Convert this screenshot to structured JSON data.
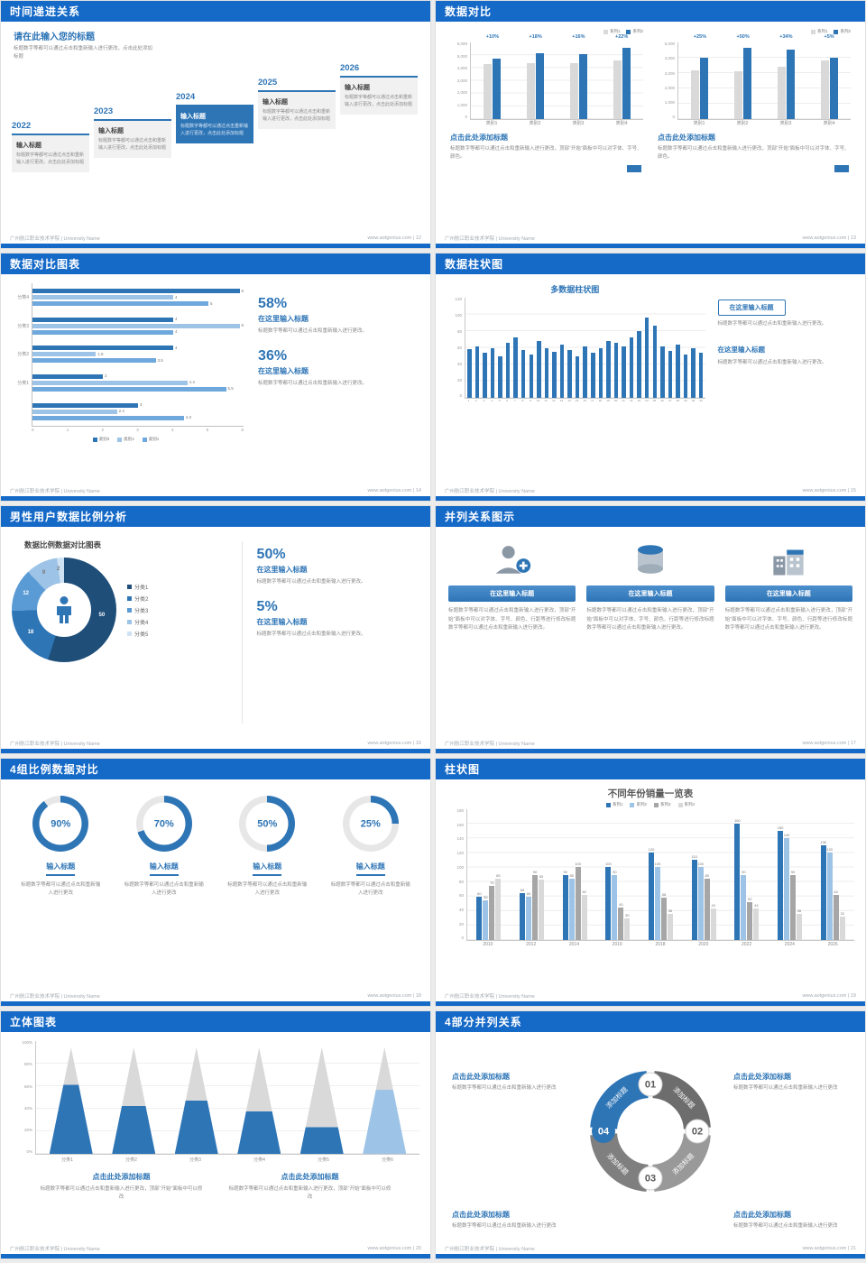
{
  "page": {
    "footer_left": "广州航江职业技术学院 | University Name",
    "footer_site": "www.aotgenius.com"
  },
  "slides": {
    "s12": {
      "page_no": "12",
      "title": "时间递进关系",
      "heading": "请在此输入您的标题",
      "subheading": "标题数字等都可以通过点击和重新输入进行更改，点击此处添加标题",
      "items": [
        {
          "year": "2022",
          "label": "输入标题",
          "text": "标题数字等都可以通过点击和重新输入进行更改，点击此处添加标题"
        },
        {
          "year": "2023",
          "label": "输入标题",
          "text": "标题数字等都可以通过点击和重新输入进行更改，点击此处添加标题"
        },
        {
          "year": "2024",
          "label": "输入标题",
          "text": "标题数字等都可以通过点击重新输入进行更改，点击此处添加标题"
        },
        {
          "year": "2025",
          "label": "输入标题",
          "text": "标题数字等都可以通过点击和重新输入进行更改，点击此处添加标题"
        },
        {
          "year": "2026",
          "label": "输入标题",
          "text": "标题数字等都可以通过点击和重新输入进行更改，点击此处添加标题"
        }
      ]
    },
    "s13": {
      "page_no": "13",
      "title": "数据对比",
      "cap_title": "点击此处添加标题",
      "cap_text": "标题数字等都可以通过点击和重新输入进行更改，顶部“开始”面板中可以对字体、字号、颜色。",
      "chart1": {
        "type": "bar",
        "legend": [
          {
            "label": "系列1",
            "color": "#d9d9d9"
          },
          {
            "label": "系列2",
            "color": "#2e75b6"
          }
        ],
        "colors": [
          "#d9d9d9",
          "#2e75b6"
        ],
        "ymax": 6000,
        "yticks": [
          "6,000",
          "5,000",
          "4,000",
          "3,000",
          "2,000",
          "1,000",
          "0"
        ],
        "groups": [
          {
            "label": "类别1",
            "badge": "+10%",
            "values": [
              4300,
              4750
            ]
          },
          {
            "label": "类别2",
            "badge": "+18%",
            "values": [
              4350,
              5150
            ]
          },
          {
            "label": "类别3",
            "badge": "+16%",
            "values": [
              4400,
              5100
            ]
          },
          {
            "label": "类别4",
            "badge": "+22%",
            "values": [
              4600,
              5600
            ]
          }
        ]
      },
      "chart2": {
        "type": "bar",
        "legend": [
          {
            "label": "系列1",
            "color": "#d9d9d9"
          },
          {
            "label": "系列2",
            "color": "#2e75b6"
          }
        ],
        "colors": [
          "#d9d9d9",
          "#2e75b6"
        ],
        "ymax": 5000,
        "yticks": [
          "5,000",
          "4,000",
          "3,000",
          "2,000",
          "1,000",
          "0"
        ],
        "groups": [
          {
            "label": "类别1",
            "badge": "+25%",
            "values": [
              3200,
              4000
            ]
          },
          {
            "label": "类别2",
            "badge": "+50%",
            "values": [
              3100,
              4650
            ]
          },
          {
            "label": "类别3",
            "badge": "+34%",
            "values": [
              3400,
              4550
            ]
          },
          {
            "label": "类别4",
            "badge": "+5%",
            "values": [
              3800,
              4000
            ]
          }
        ]
      }
    },
    "s14": {
      "page_no": "14",
      "title": "数据对比图表",
      "chart": {
        "type": "bar",
        "orientation": "horizontal",
        "xmax": 6,
        "xticks": [
          "0",
          "1",
          "2",
          "3",
          "4",
          "5",
          "6"
        ],
        "legend": [
          {
            "label": "类别3",
            "color": "#2e75b6"
          },
          {
            "label": "类别2",
            "color": "#9dc3e6"
          },
          {
            "label": "类别1",
            "color": "#6fa8dc"
          }
        ],
        "colors": [
          "#2e75b6",
          "#9dc3e6",
          "#6fa8dc"
        ],
        "groups": [
          {
            "label": "分类4",
            "values": [
              6,
              4,
              5
            ]
          },
          {
            "label": "分类3",
            "values": [
              4,
              6,
              4
            ]
          },
          {
            "label": "分类2",
            "values": [
              4,
              1.8,
              3.5
            ]
          },
          {
            "label": "分类1",
            "values": [
              2,
              4.4,
              5.5
            ]
          },
          {
            "label": "",
            "values": [
              3,
              2.4,
              4.3
            ]
          }
        ]
      },
      "stats": [
        {
          "pct": "58%",
          "head": "在这里输入标题",
          "text": "标题数字等都可以通过点击和重新输入进行更改。"
        },
        {
          "pct": "36%",
          "head": "在这里输入标题",
          "text": "标题数字等都可以通过点击和重新输入进行更改。"
        }
      ]
    },
    "s15": {
      "page_no": "15",
      "title": "数据柱状图",
      "chart": {
        "type": "bar",
        "title": "多数据柱状图",
        "color": "#2e75b6",
        "ymax": 120,
        "yticks": [
          "120",
          "100",
          "80",
          "60",
          "40",
          "20",
          "0"
        ],
        "xlabels": [
          "1",
          "2",
          "3",
          "4",
          "5",
          "6",
          "7",
          "8",
          "9",
          "10",
          "11",
          "12",
          "13",
          "14",
          "15",
          "16",
          "17",
          "18",
          "19",
          "20",
          "21",
          "22",
          "23",
          "24",
          "25",
          "26",
          "27",
          "28",
          "29",
          "30",
          "31"
        ],
        "values": [
          58,
          62,
          54,
          60,
          50,
          66,
          72,
          57,
          52,
          68,
          60,
          55,
          64,
          57,
          50,
          62,
          54,
          60,
          68,
          66,
          62,
          72,
          80,
          96,
          86,
          62,
          56,
          64,
          52,
          60,
          54
        ]
      },
      "blocks": [
        {
          "head": "在这里输入标题",
          "text": "标题数字等都可以通过点击和重新输入进行更改。"
        },
        {
          "head": "在这里输入标题",
          "text": "标题数字等都可以通过点击和重新输入进行更改。"
        }
      ]
    },
    "s16": {
      "page_no": "16",
      "title": "男性用户数据比例分析",
      "chart_title": "数据比例数据对比图表",
      "donut": {
        "type": "pie",
        "values": [
          50,
          18,
          12,
          9,
          2
        ],
        "labels": [
          "50",
          "18",
          "12",
          "9",
          "2"
        ],
        "label_dark": [
          3,
          4
        ],
        "colors": [
          "#1f4e79",
          "#2e75b6",
          "#5b9bd5",
          "#9dc3e6",
          "#cfe2f3"
        ],
        "legend": [
          "分类1",
          "分类2",
          "分类3",
          "分类4",
          "分类5"
        ]
      },
      "stats": [
        {
          "pct": "50%",
          "head": "在这里输入标题",
          "text": "标题数字等都可以通过点击和重新输入进行更改。"
        },
        {
          "pct": "5%",
          "head": "在这里输入标题",
          "text": "标题数字等都可以通过点击和重新输入进行更改。"
        }
      ]
    },
    "s17": {
      "page_no": "17",
      "title": "并列关系图示",
      "columns": [
        {
          "icon": "person-add-icon",
          "button": "在这里输入标题",
          "text": "标题数字等都可以通过点击和重新输入进行更改，顶部“开始”面板中可以对字体、字号、颜色、行距等进行修改标题数字等都可以通过点击和重新输入进行更改。"
        },
        {
          "icon": "database-icon",
          "button": "在这里输入标题",
          "text": "标题数字等都可以通过点击和重新输入进行更改，顶部“开始”面板中可以对字体、字号、颜色、行距等进行修改标题数字等都可以通过点击和重新输入进行更改。"
        },
        {
          "icon": "building-icon",
          "button": "在这里输入标题",
          "text": "标题数字等都可以通过点击和重新输入进行更改，顶部“开始”面板中可以对字体、字号、颜色、行距等进行修改标题数字等都可以通过点击和重新输入进行更改。"
        }
      ]
    },
    "s18": {
      "page_no": "18",
      "title": "4组比例数据对比",
      "ring_color": "#2e75b6",
      "ring_bg": "#e7e7e7",
      "rings": [
        {
          "pct": "90%",
          "value": 90,
          "label": "输入标题",
          "text": "标题数字等都可以通过点击和重新输入进行更改"
        },
        {
          "pct": "70%",
          "value": 70,
          "label": "输入标题",
          "text": "标题数字等都可以通过点击和重新输入进行更改"
        },
        {
          "pct": "50%",
          "value": 50,
          "label": "输入标题",
          "text": "标题数字等都可以通过点击和重新输入进行更改"
        },
        {
          "pct": "25%",
          "value": 25,
          "label": "输入标题",
          "text": "标题数字等都可以通过点击和重新输入进行更改"
        }
      ]
    },
    "s19": {
      "page_no": "19",
      "title": "柱状图",
      "chart": {
        "type": "bar",
        "title": "不同年份销量一览表",
        "legend": [
          {
            "label": "系列1",
            "color": "#2e75b6"
          },
          {
            "label": "系列2",
            "color": "#9dc3e6"
          },
          {
            "label": "系列3",
            "color": "#a6a6a6"
          },
          {
            "label": "系列4",
            "color": "#d9d9d9"
          }
        ],
        "colors": [
          "#2e75b6",
          "#9dc3e6",
          "#a6a6a6",
          "#d9d9d9"
        ],
        "ymax": 180,
        "yticks": [
          "180",
          "160",
          "140",
          "120",
          "100",
          "80",
          "60",
          "40",
          "20",
          "0"
        ],
        "show_values": true,
        "groups": [
          {
            "label": "2010",
            "values": [
              60,
              55,
              75,
              85
            ]
          },
          {
            "label": "2012",
            "values": [
              65,
              60,
              90,
              83
            ]
          },
          {
            "label": "2014",
            "values": [
              90,
              85,
              100,
              62
            ]
          },
          {
            "label": "2016",
            "values": [
              100,
              90,
              45,
              30
            ]
          },
          {
            "label": "2018",
            "values": [
              120,
              100,
              58,
              36
            ]
          },
          {
            "label": "2020",
            "values": [
              110,
              100,
              85,
              43
            ]
          },
          {
            "label": "2022",
            "values": [
              160,
              90,
              52,
              43
            ]
          },
          {
            "label": "2024",
            "values": [
              150,
              140,
              90,
              36
            ]
          },
          {
            "label": "2026",
            "values": [
              130,
              120,
              62,
              32
            ]
          }
        ]
      }
    },
    "s20": {
      "page_no": "20",
      "title": "立体图表",
      "chart": {
        "type": "cone",
        "yticks": [
          "100%",
          "80%",
          "60%",
          "40%",
          "20%",
          "0%"
        ],
        "items": [
          {
            "label": "分类1",
            "fill": 65,
            "color": "#2e75b6"
          },
          {
            "label": "分类2",
            "fill": 45,
            "color": "#2e75b6"
          },
          {
            "label": "分类3",
            "fill": 50,
            "color": "#2e75b6"
          },
          {
            "label": "分类4",
            "fill": 40,
            "color": "#2e75b6"
          },
          {
            "label": "分类5",
            "fill": 25,
            "color": "#2e75b6"
          },
          {
            "label": "分类6",
            "fill": 60,
            "color": "#9dc3e6"
          }
        ]
      },
      "blocks": [
        {
          "head": "点击此处添加标题",
          "text": "标题数字等都可以通过点击和重新输入进行更改，顶部“开始”面板中可以修改"
        },
        {
          "head": "点击此处添加标题",
          "text": "标题数字等都可以通过点击和重新输入进行更改，顶部“开始”面板中可以修改"
        }
      ]
    },
    "s21": {
      "page_no": "21",
      "title": "4部分并列关系",
      "diagram": {
        "seg_labels": [
          "添加标题",
          "添加标题",
          "添加标题",
          "添加标题"
        ],
        "seg_colors": [
          "#2e75b6",
          "#6d6d6d",
          "#999999",
          "#7f7f7f"
        ],
        "numbers": [
          "01",
          "02",
          "03",
          "04"
        ],
        "accent": "#2e75b6"
      },
      "corners": [
        {
          "head": "点击此处添加标题",
          "text": "标题数字等都可以通过点击和重新输入进行更改"
        },
        {
          "head": "点击此处添加标题",
          "text": "标题数字等都可以通过点击和重新输入进行更改"
        },
        {
          "head": "点击此处添加标题",
          "text": "标题数字等都可以通过点击和重新输入进行更改"
        },
        {
          "head": "点击此处添加标题",
          "text": "标题数字等都可以通过点击和重新输入进行更改"
        }
      ]
    }
  }
}
